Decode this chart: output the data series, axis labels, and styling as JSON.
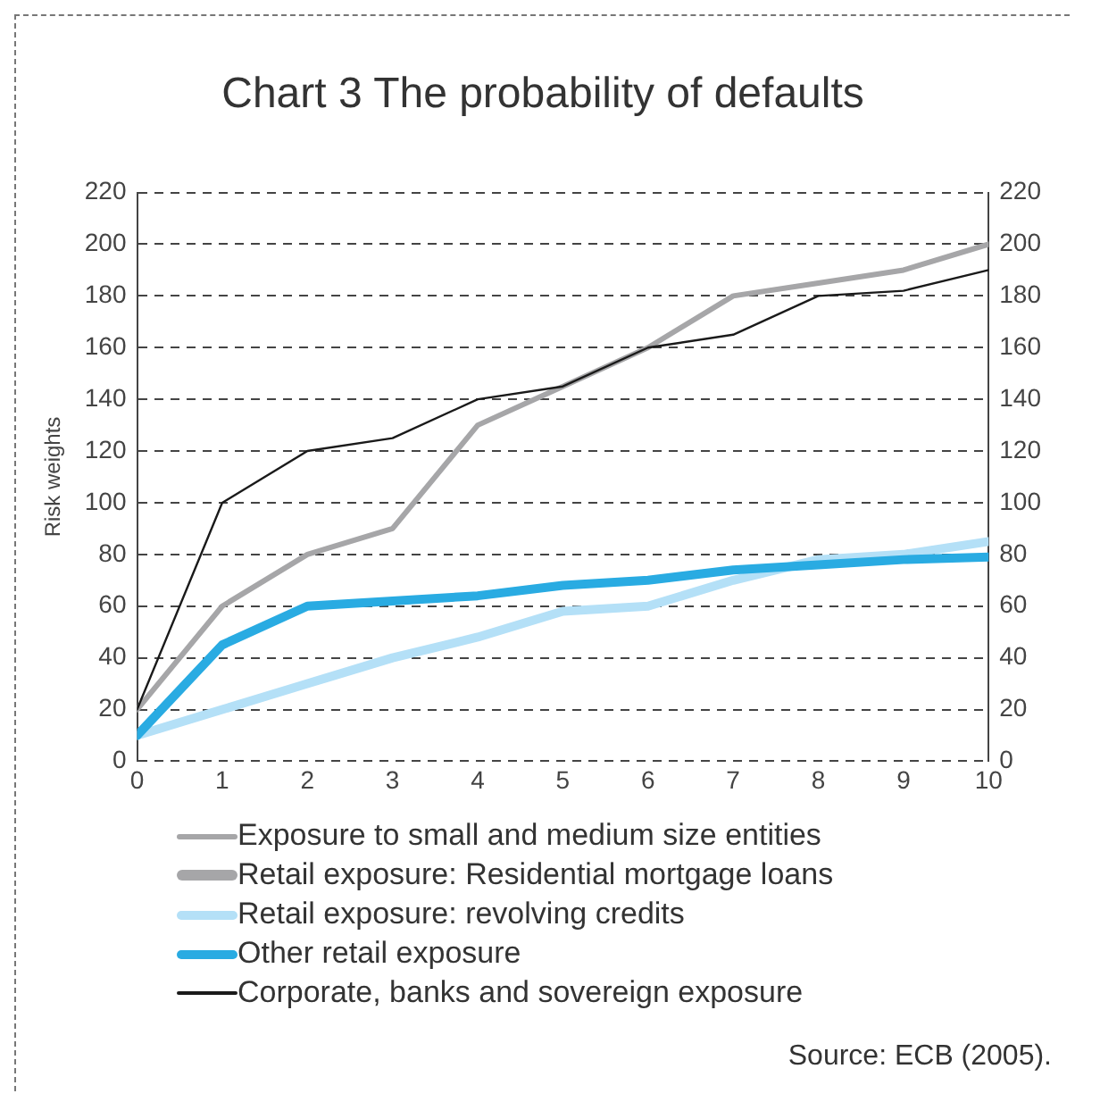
{
  "chart_data": {
    "type": "line",
    "title": "Chart 3 The probability of defaults",
    "ylabel": "Risk weights",
    "annotations": [
      "Source: ECB (2005)."
    ],
    "x": [
      0,
      1,
      2,
      3,
      4,
      5,
      6,
      7,
      8,
      9,
      10
    ],
    "xlim": [
      0,
      10
    ],
    "xticks": [
      0,
      1,
      2,
      3,
      4,
      5,
      6,
      7,
      8,
      9,
      10
    ],
    "ylim": [
      0,
      220
    ],
    "yticks": [
      0,
      20,
      40,
      60,
      80,
      100,
      120,
      140,
      160,
      180,
      200,
      220
    ],
    "y2lim": [
      0,
      220
    ],
    "y2ticks": [
      0,
      20,
      40,
      60,
      80,
      100,
      120,
      140,
      160,
      180,
      200,
      220
    ],
    "grid": "y",
    "legend": "bottom",
    "marker": "none",
    "line_style": "solid",
    "series": [
      {
        "name": "Exposure to small and medium size entities",
        "color": "#a6a6a8",
        "values": [
          20,
          60,
          80,
          90,
          130,
          145,
          160,
          180,
          185,
          190,
          200
        ]
      },
      {
        "name": "Retail exposure: Residential mortgage loans",
        "color": "#a6a6a8",
        "values": [
          null,
          null,
          null,
          null,
          null,
          null,
          null,
          null,
          null,
          null,
          null
        ]
      },
      {
        "name": "Retail exposure: revolving credits",
        "color": "#b4e0f7",
        "values": [
          10,
          20,
          30,
          40,
          48,
          58,
          60,
          70,
          78,
          80,
          85
        ]
      },
      {
        "name": "Other retail exposure",
        "color": "#29abe2",
        "values": [
          10,
          45,
          60,
          62,
          64,
          68,
          70,
          74,
          76,
          78,
          79
        ]
      },
      {
        "name": "Corporate, banks and sovereign exposure",
        "color": "#1a1a1a",
        "values": [
          20,
          100,
          120,
          125,
          140,
          145,
          160,
          165,
          180,
          182,
          190
        ]
      }
    ]
  }
}
